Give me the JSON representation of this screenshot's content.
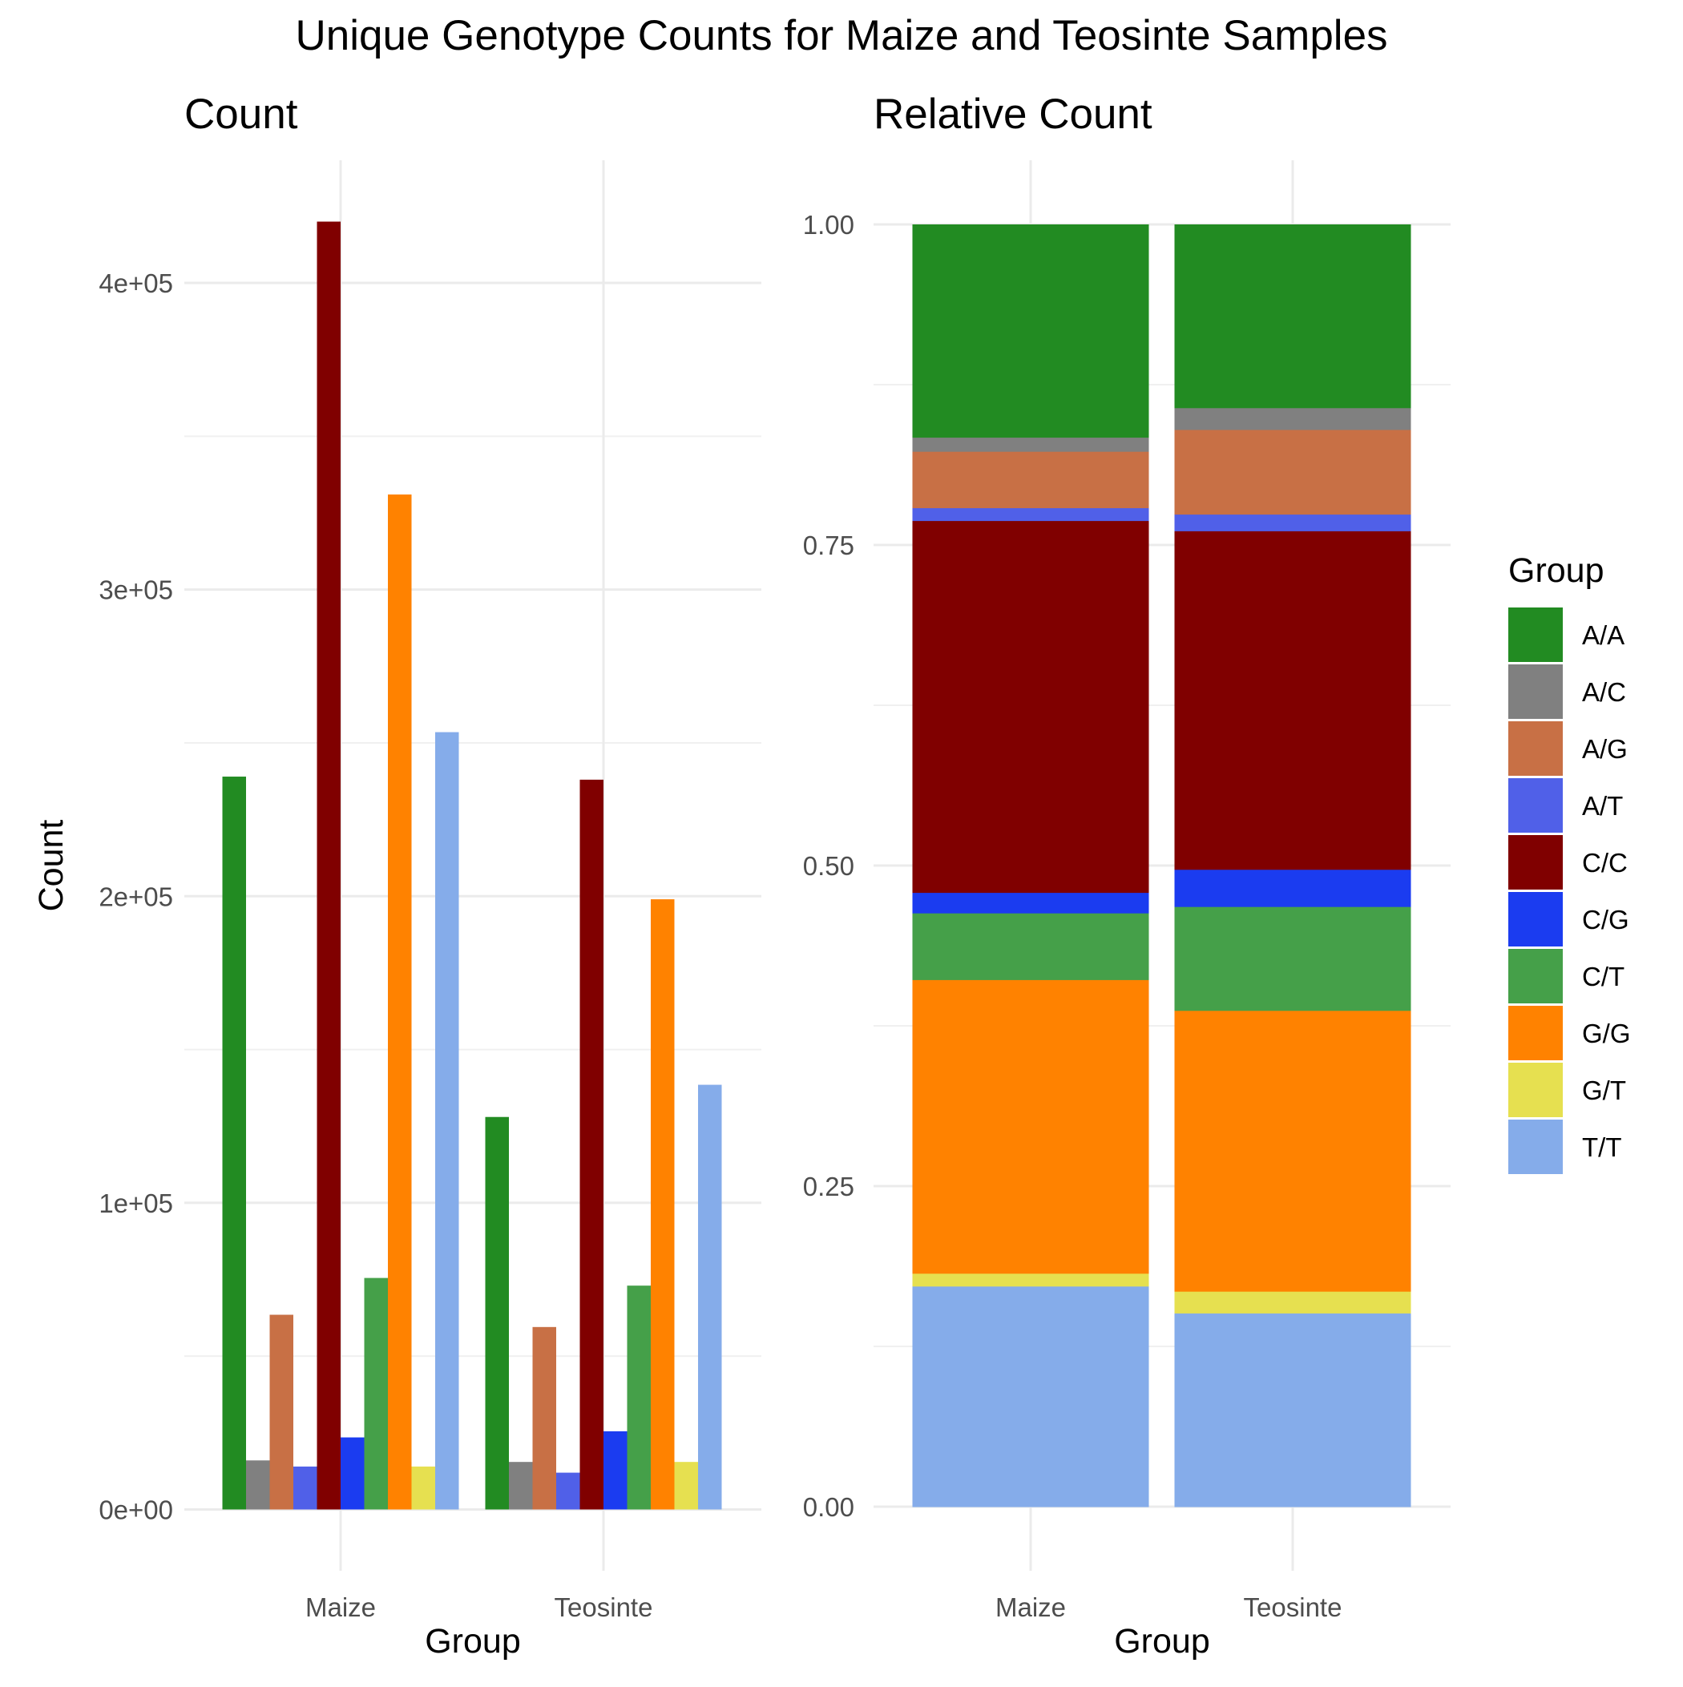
{
  "title": "Unique Genotype Counts for Maize and Teosinte Samples",
  "legend": {
    "title": "Group",
    "position": "right"
  },
  "chart_data": [
    {
      "type": "bar",
      "panel_title": "Count",
      "xlabel": "Group",
      "ylabel": "Count",
      "categories": [
        "Maize",
        "Teosinte"
      ],
      "yticks": [
        "0e+00",
        "1e+05",
        "2e+05",
        "3e+05",
        "4e+05"
      ],
      "ylim": [
        -20000,
        440000
      ],
      "grid": true,
      "series": [
        {
          "name": "A/A",
          "color": "#228B22",
          "values": [
            239000,
            128000
          ]
        },
        {
          "name": "A/C",
          "color": "#808080",
          "values": [
            16000,
            15500
          ]
        },
        {
          "name": "A/G",
          "color": "#C87045",
          "values": [
            63500,
            59500
          ]
        },
        {
          "name": "A/T",
          "color": "#5060E8",
          "values": [
            14000,
            12000
          ]
        },
        {
          "name": "C/C",
          "color": "#800000",
          "values": [
            420000,
            238000
          ]
        },
        {
          "name": "C/G",
          "color": "#1B3CF0",
          "values": [
            23500,
            25500
          ]
        },
        {
          "name": "C/T",
          "color": "#45A049",
          "values": [
            75500,
            73000
          ]
        },
        {
          "name": "G/G",
          "color": "#FF8200",
          "values": [
            331000,
            199000
          ]
        },
        {
          "name": "G/T",
          "color": "#E6E050",
          "values": [
            14000,
            15500
          ]
        },
        {
          "name": "T/T",
          "color": "#85ACEA",
          "values": [
            253500,
            138500
          ]
        }
      ]
    },
    {
      "type": "bar",
      "stacked": true,
      "panel_title": "Relative Count",
      "xlabel": "Group",
      "ylabel": "",
      "categories": [
        "Maize",
        "Teosinte"
      ],
      "yticks": [
        "0.00",
        "0.25",
        "0.50",
        "0.75",
        "1.00"
      ],
      "ylim": [
        -0.05,
        1.05
      ],
      "grid": true,
      "series": [
        {
          "name": "A/A",
          "color": "#228B22",
          "values": [
            0.166,
            0.143
          ]
        },
        {
          "name": "A/C",
          "color": "#808080",
          "values": [
            0.011,
            0.017
          ]
        },
        {
          "name": "A/G",
          "color": "#C87045",
          "values": [
            0.044,
            0.066
          ]
        },
        {
          "name": "A/T",
          "color": "#5060E8",
          "values": [
            0.01,
            0.013
          ]
        },
        {
          "name": "C/C",
          "color": "#800000",
          "values": [
            0.29,
            0.264
          ]
        },
        {
          "name": "C/G",
          "color": "#1B3CF0",
          "values": [
            0.016,
            0.029
          ]
        },
        {
          "name": "C/T",
          "color": "#45A049",
          "values": [
            0.052,
            0.081
          ]
        },
        {
          "name": "G/G",
          "color": "#FF8200",
          "values": [
            0.229,
            0.219
          ]
        },
        {
          "name": "G/T",
          "color": "#E6E050",
          "values": [
            0.01,
            0.017
          ]
        },
        {
          "name": "T/T",
          "color": "#85ACEA",
          "values": [
            0.172,
            0.151
          ]
        }
      ]
    }
  ]
}
